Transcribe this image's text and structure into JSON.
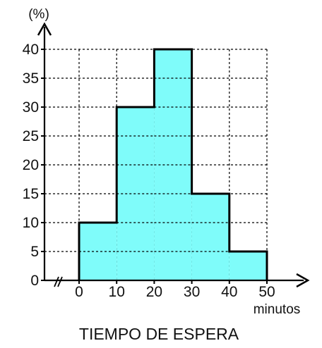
{
  "chart_data": {
    "type": "bar",
    "title": "TIEMPO DE ESPERA",
    "xlabel": "minutos",
    "ylabel": "(%)",
    "bins": [
      {
        "from": 0,
        "to": 10,
        "value": 10
      },
      {
        "from": 10,
        "to": 20,
        "value": 30
      },
      {
        "from": 20,
        "to": 30,
        "value": 40
      },
      {
        "from": 30,
        "to": 40,
        "value": 15
      },
      {
        "from": 40,
        "to": 50,
        "value": 5
      }
    ],
    "xlim": [
      0,
      50
    ],
    "ylim": [
      0,
      40
    ],
    "x_ticks": [
      "0",
      "10",
      "20",
      "30",
      "40",
      "50"
    ],
    "y_ticks": [
      "0",
      "5",
      "10",
      "15",
      "20",
      "25",
      "30",
      "35",
      "40"
    ],
    "grid": true,
    "axis_break": "x",
    "colors": {
      "bar_fill": "#7ffcfa",
      "bar_stroke": "#000000",
      "grid": "#000000"
    }
  }
}
